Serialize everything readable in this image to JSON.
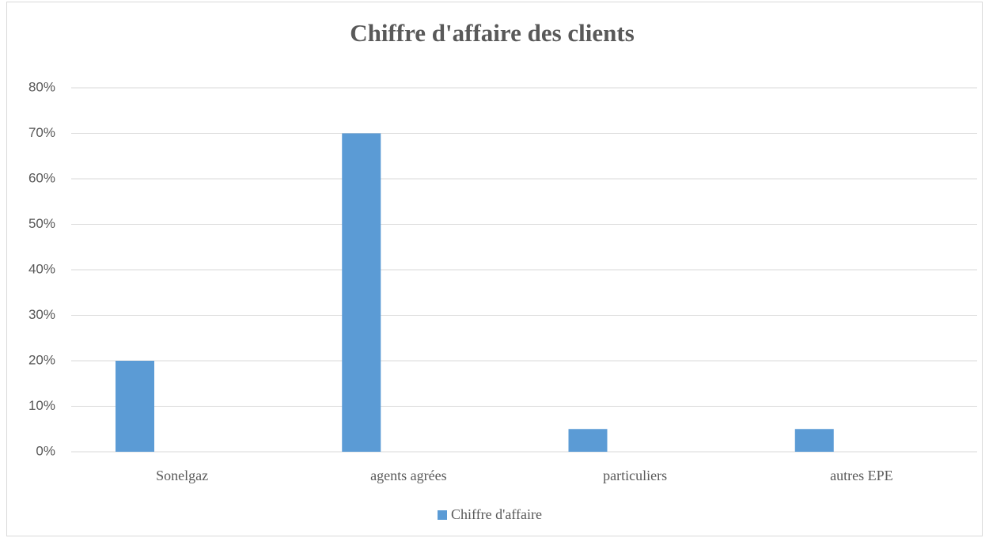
{
  "chart_data": {
    "type": "bar",
    "title": "Chiffre d'affaire des clients",
    "categories": [
      "Sonelgaz",
      "agents agrées",
      "particuliers",
      "autres EPE"
    ],
    "series": [
      {
        "name": "Chiffre d'affaire",
        "color": "#5b9bd5",
        "values": [
          20,
          70,
          5,
          5
        ]
      }
    ],
    "ylim": [
      0,
      80
    ],
    "yticks": [
      {
        "value": 0,
        "label": "0%"
      },
      {
        "value": 10,
        "label": "10%"
      },
      {
        "value": 20,
        "label": "20%"
      },
      {
        "value": 30,
        "label": "30%"
      },
      {
        "value": 40,
        "label": "40%"
      },
      {
        "value": 50,
        "label": "50%"
      },
      {
        "value": 60,
        "label": "60%"
      },
      {
        "value": 70,
        "label": "70%"
      },
      {
        "value": 80,
        "label": "80%"
      }
    ],
    "grid": true,
    "legend": "bottom"
  }
}
